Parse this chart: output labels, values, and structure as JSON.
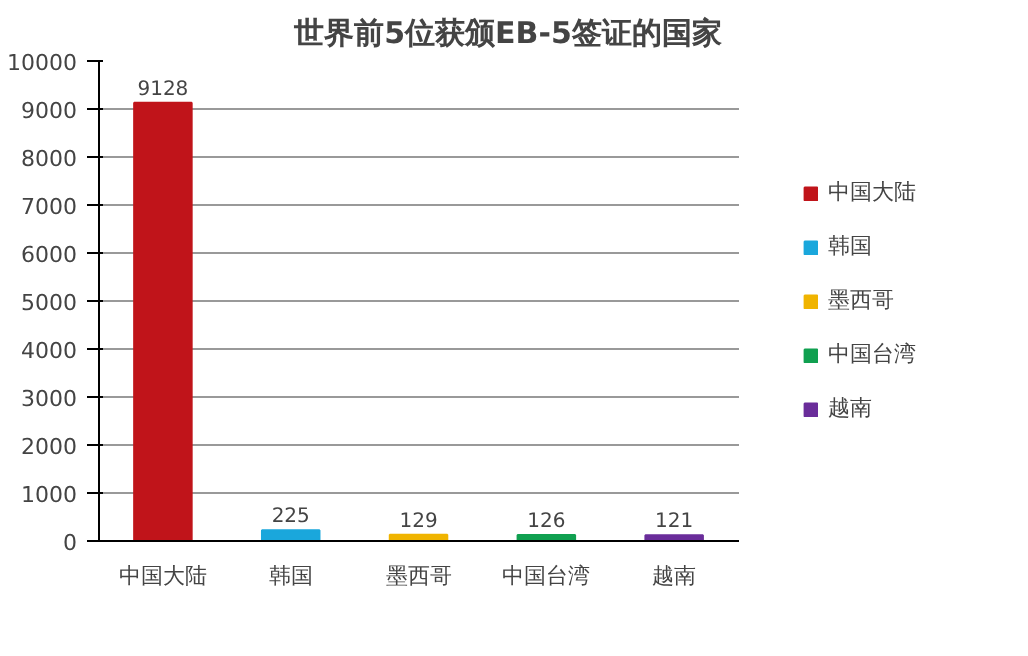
{
  "chart_data": {
    "type": "bar",
    "title": "世界前5位获颁EB-5签证的国家",
    "categories": [
      "中国大陆",
      "韩国",
      "墨西哥",
      "中国台湾",
      "越南"
    ],
    "series": [
      {
        "name": "中国大陆",
        "color": "#c0141a",
        "values": [
          9128,
          null,
          null,
          null,
          null
        ]
      },
      {
        "name": "韩国",
        "color": "#1aa7dc",
        "values": [
          null,
          225,
          null,
          null,
          null
        ]
      },
      {
        "name": "墨西哥",
        "color": "#f0b400",
        "values": [
          null,
          null,
          129,
          null,
          null
        ]
      },
      {
        "name": "中国台湾",
        "color": "#10a050",
        "values": [
          null,
          null,
          null,
          126,
          null
        ]
      },
      {
        "name": "越南",
        "color": "#6a2d9a",
        "values": [
          null,
          null,
          null,
          null,
          121
        ]
      }
    ],
    "ylim": [
      0,
      10000
    ],
    "yticks": [
      0,
      1000,
      2000,
      3000,
      4000,
      5000,
      6000,
      7000,
      8000,
      9000,
      10000
    ],
    "grid": "y",
    "legend": "right",
    "data_labels": true
  }
}
